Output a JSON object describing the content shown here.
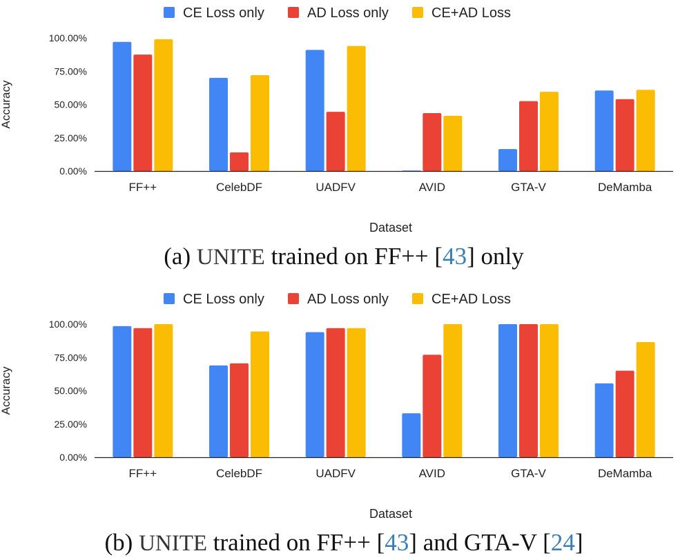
{
  "colors": {
    "ce": "#4285F4",
    "ad": "#EA4335",
    "ce_ad": "#FBBC04",
    "axis": "#222222",
    "text": "#222222",
    "ref": "#3B7EB5"
  },
  "chart_data": [
    {
      "id": "a",
      "type": "bar",
      "title": "",
      "xlabel": "Dataset",
      "ylabel": "Accuracy",
      "ylim": [
        0,
        100
      ],
      "yticks": [
        "0.00%",
        "25.00%",
        "50.00%",
        "75.00%",
        "100.00%"
      ],
      "grid": false,
      "legend_position": "top",
      "categories": [
        "FF++",
        "CelebDF",
        "UADFV",
        "AVID",
        "GTA-V",
        "DeMamba"
      ],
      "series": [
        {
          "name": "CE Loss only",
          "color_key": "ce",
          "values": [
            97.0,
            70.0,
            91.0,
            0.4,
            16.5,
            60.5
          ]
        },
        {
          "name": "AD Loss only",
          "color_key": "ad",
          "values": [
            87.5,
            14.0,
            44.5,
            43.5,
            52.5,
            54.0
          ]
        },
        {
          "name": "CE+AD Loss",
          "color_key": "ce_ad",
          "values": [
            99.0,
            72.0,
            94.0,
            41.5,
            59.5,
            61.0
          ]
        }
      ],
      "caption": {
        "prefix": "(a) ",
        "code": "UNITE",
        "middle": " trained on FF++ [",
        "ref1": "43",
        "suffix": "] only"
      }
    },
    {
      "id": "b",
      "type": "bar",
      "title": "",
      "xlabel": "Dataset",
      "ylabel": "Accuracy",
      "ylim": [
        0,
        100
      ],
      "yticks": [
        "0.00%",
        "25.00%",
        "50.00%",
        "75.00%",
        "100.00%"
      ],
      "grid": false,
      "legend_position": "top",
      "categories": [
        "FF++",
        "CelebDF",
        "UADFV",
        "AVID",
        "GTA-V",
        "DeMamba"
      ],
      "series": [
        {
          "name": "CE Loss only",
          "color_key": "ce",
          "values": [
            98.5,
            69.0,
            94.0,
            33.0,
            100.0,
            55.5
          ]
        },
        {
          "name": "AD Loss only",
          "color_key": "ad",
          "values": [
            97.0,
            70.5,
            97.0,
            77.0,
            100.0,
            65.0
          ]
        },
        {
          "name": "CE+AD Loss",
          "color_key": "ce_ad",
          "values": [
            100.0,
            94.5,
            97.0,
            100.0,
            100.0,
            86.5
          ]
        }
      ],
      "caption": {
        "prefix": "(b) ",
        "code": "UNITE",
        "middle": " trained on FF++ [",
        "ref1": "43",
        "middle2": "] and GTA-V [",
        "ref2": "24",
        "suffix": "]"
      }
    }
  ]
}
